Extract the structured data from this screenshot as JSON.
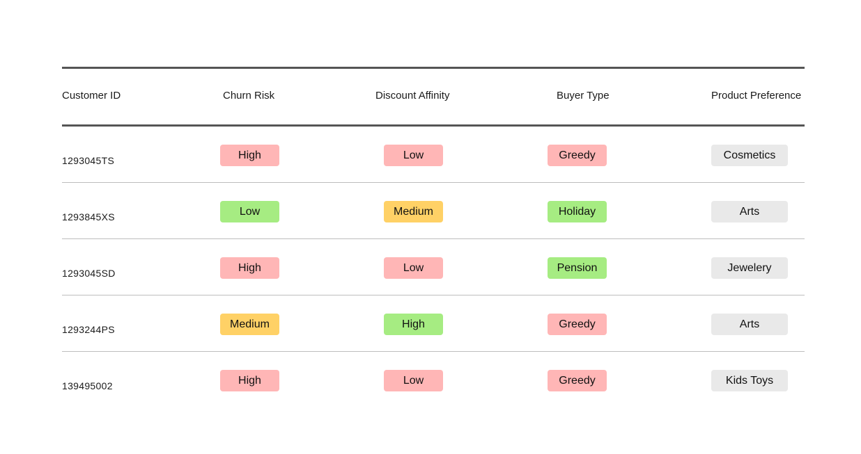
{
  "colors": {
    "High": "#ffb6b6",
    "Low": "#ffb6b6",
    "Medium": "#ffd166",
    "Greedy": "#ffb6b6",
    "good": "#a6ec82",
    "neutral": "#e9e9e9"
  },
  "table": {
    "headers": {
      "customer_id": "Customer ID",
      "churn_risk": "Churn Risk",
      "discount_affinity": "Discount Affinity",
      "buyer_type": "Buyer Type",
      "product_preference": "Product Preference"
    },
    "rows": [
      {
        "id": "1293045TS",
        "churn": {
          "text": "High",
          "color": "#ffb6b6"
        },
        "discount": {
          "text": "Low",
          "color": "#ffb6b6"
        },
        "buyer": {
          "text": "Greedy",
          "color": "#ffb6b6"
        },
        "pref": {
          "text": "Cosmetics",
          "color": "#e9e9e9"
        }
      },
      {
        "id": "1293845XS",
        "churn": {
          "text": "Low",
          "color": "#a6ec82"
        },
        "discount": {
          "text": "Medium",
          "color": "#ffd166"
        },
        "buyer": {
          "text": "Holiday",
          "color": "#a6ec82"
        },
        "pref": {
          "text": "Arts",
          "color": "#e9e9e9"
        }
      },
      {
        "id": "1293045SD",
        "churn": {
          "text": "High",
          "color": "#ffb6b6"
        },
        "discount": {
          "text": "Low",
          "color": "#ffb6b6"
        },
        "buyer": {
          "text": "Pension",
          "color": "#a6ec82"
        },
        "pref": {
          "text": "Jewelery",
          "color": "#e9e9e9"
        }
      },
      {
        "id": "1293244PS",
        "churn": {
          "text": "Medium",
          "color": "#ffd166"
        },
        "discount": {
          "text": "High",
          "color": "#a6ec82"
        },
        "buyer": {
          "text": "Greedy",
          "color": "#ffb6b6"
        },
        "pref": {
          "text": "Arts",
          "color": "#e9e9e9"
        }
      },
      {
        "id": "139495002",
        "churn": {
          "text": "High",
          "color": "#ffb6b6"
        },
        "discount": {
          "text": "Low",
          "color": "#ffb6b6"
        },
        "buyer": {
          "text": "Greedy",
          "color": "#ffb6b6"
        },
        "pref": {
          "text": "Kids Toys",
          "color": "#e9e9e9"
        }
      }
    ]
  }
}
